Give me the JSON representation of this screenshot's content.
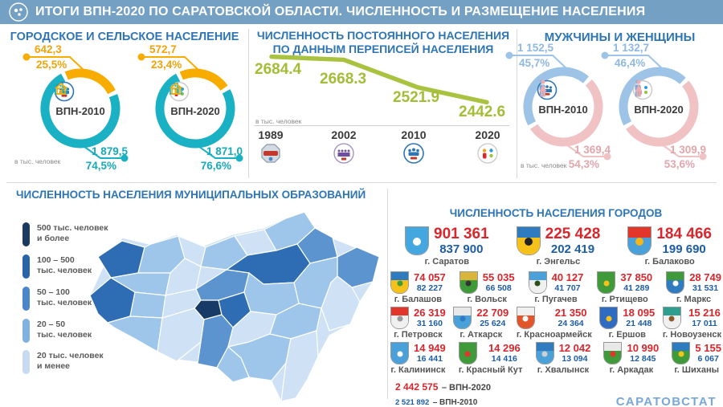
{
  "header": {
    "title": "ИТОГИ ВПН-2020 ПО САРАТОВСКОЙ ОБЛАСТИ. ЧИСЛЕННОСТЬ И РАЗМЕЩЕНИЕ НАСЕЛЕНИЯ",
    "logo": "census-round-emblem"
  },
  "colors": {
    "header_bg": "#74a0c4",
    "panel_title": "#2e75b6",
    "urban_teal": "#1ab1c5",
    "rural_yellow": "#f8ac00",
    "men_blue": "#9dc3e6",
    "women_pink": "#f0c2c4",
    "line_green": "#a9c23f",
    "vpn2020_red": "#d9262c",
    "vpn2010_blue": "#1d5ca8"
  },
  "panels": {
    "urban_rural": {
      "title": "ГОРОДСКОЕ И СЕЛЬСКОЕ НАСЕЛЕНИЕ",
      "unit": "в тыс. человек",
      "charts": [
        {
          "label": "ВПН-2010",
          "rural": {
            "value": "642,3",
            "pct": "25,5%"
          },
          "urban": {
            "value": "1 879,5",
            "pct": "74,5%"
          }
        },
        {
          "label": "ВПН-2020",
          "rural": {
            "value": "572,7",
            "pct": "23,4%"
          },
          "urban": {
            "value": "1 871,0",
            "pct": "76,6%"
          }
        }
      ]
    },
    "census_population": {
      "title_line1": "ЧИСЛЕННОСТЬ ПОСТОЯННОГО НАСЕЛЕНИЯ",
      "title_line2": "ПО ДАННЫМ ПЕРЕПИСЕЙ НАСЕЛЕНИЯ",
      "unit": "в тыс. человек"
    },
    "men_women": {
      "title": "МУЖЧИНЫ И ЖЕНЩИНЫ",
      "unit": "в тыс. человек",
      "charts": [
        {
          "label": "ВПН-2010",
          "men": {
            "value": "1 152,5",
            "pct": "45,7%"
          },
          "women": {
            "value": "1 369,4",
            "pct": "54,3%"
          }
        },
        {
          "label": "ВПН-2020",
          "men": {
            "value": "1 132,7",
            "pct": "46,4%"
          },
          "women": {
            "value": "1 309,9",
            "pct": "53,6%"
          }
        }
      ]
    },
    "municipalities": {
      "title": "ЧИСЛЕННОСТЬ НАСЕЛЕНИЯ МУНИЦИПАЛЬНЫХ ОБРАЗОВАНИЙ",
      "legend": [
        {
          "line1": "500 тыс. человек",
          "line2": "и более",
          "color": "#1b3a5f"
        },
        {
          "line1": "100 – 500",
          "line2": "тыс. человек",
          "color": "#2a64a8"
        },
        {
          "line1": "50 – 100",
          "line2": "тыс. человек",
          "color": "#4a86c8"
        },
        {
          "line1": "20 – 50",
          "line2": "тыс. человек",
          "color": "#7fb2e0"
        },
        {
          "line1": "20 тыс. человек",
          "line2": "и менее",
          "color": "#c6dbf2"
        }
      ]
    },
    "cities": {
      "title": "ЧИСЛЕННОСТЬ НАСЕЛЕНИЯ ГОРОДОВ",
      "major": [
        {
          "name": "г. Саратов",
          "vpn2020": "901 361",
          "vpn2010": "837 900",
          "arms": [
            "#45a7e0",
            "#45a7e0",
            "#ffffff"
          ]
        },
        {
          "name": "г. Энгельс",
          "vpn2020": "225 428",
          "vpn2010": "202 419",
          "arms": [
            "#2f7bc0",
            "#f6c21a",
            "#222222"
          ]
        },
        {
          "name": "г. Балаково",
          "vpn2020": "184 466",
          "vpn2010": "199 690",
          "arms": [
            "#e2362a",
            "#4aa0d8",
            "#f6b31a"
          ]
        }
      ],
      "minor": [
        {
          "name": "г. Балашов",
          "vpn2020": "74 057",
          "vpn2010": "82 227",
          "arms": [
            "#2f7bc0",
            "#f6c21a",
            "#3f9b3a"
          ]
        },
        {
          "name": "г. Вольск",
          "vpn2020": "55 035",
          "vpn2010": "66 508",
          "arms": [
            "#d9b53a",
            "#3f9b3a",
            "#333333"
          ]
        },
        {
          "name": "г. Пугачев",
          "vpn2020": "40 127",
          "vpn2010": "41 707",
          "arms": [
            "#4aa0d8",
            "#f0f0f0",
            "#2d5016"
          ]
        },
        {
          "name": "г. Ртищево",
          "vpn2020": "37 850",
          "vpn2010": "41 289",
          "arms": [
            "#3f9b3a",
            "#3f9b3a",
            "#f6c21a"
          ]
        },
        {
          "name": "г. Маркс",
          "vpn2020": "28 749",
          "vpn2010": "31 531",
          "arms": [
            "#3f9b3a",
            "#2f7bc0",
            "#ffffff"
          ]
        },
        {
          "name": "г. Петровск",
          "vpn2020": "26 319",
          "vpn2010": "31 160",
          "arms": [
            "#e2362a",
            "#f0f0f0",
            "#999999"
          ]
        },
        {
          "name": "г. Аткарск",
          "vpn2020": "22 709",
          "vpn2010": "25 624",
          "arms": [
            "#e8e8e8",
            "#4aa0d8",
            "#2f7bc0"
          ]
        },
        {
          "name": "г. Красноармейск",
          "vpn2020": "21 350",
          "vpn2010": "24 364",
          "arms": [
            "#f0f0f0",
            "#e2552a",
            "#ffffff"
          ]
        },
        {
          "name": "г. Ершов",
          "vpn2020": "18 095",
          "vpn2010": "21 448",
          "arms": [
            "#2f6bc0",
            "#2f6bc0",
            "#f6c21a"
          ]
        },
        {
          "name": "г. Новоузенск",
          "vpn2020": "15 216",
          "vpn2010": "17 011",
          "arms": [
            "#2e9e8f",
            "#f0f0f0",
            "#8a5a2b"
          ]
        },
        {
          "name": "г. Калининск",
          "vpn2020": "14 949",
          "vpn2010": "16 441",
          "arms": [
            "#4aa0d8",
            "#4aa0d8",
            "#ffffff"
          ]
        },
        {
          "name": "г. Красный Кут",
          "vpn2020": "14 296",
          "vpn2010": "14 416",
          "arms": [
            "#3f9b3a",
            "#3f9b3a",
            "#e2362a"
          ]
        },
        {
          "name": "г. Хвалынск",
          "vpn2020": "12 042",
          "vpn2010": "13 094",
          "arms": [
            "#2f7bc0",
            "#4aa0d8",
            "#cfcfcf"
          ]
        },
        {
          "name": "г. Аркадак",
          "vpn2020": "10 990",
          "vpn2010": "12 845",
          "arms": [
            "#e8e8e8",
            "#3f9b3a",
            "#e2362a"
          ]
        },
        {
          "name": "г. Шиханы",
          "vpn2020": "5 155",
          "vpn2010": "6 067",
          "arms": [
            "#2f7bc0",
            "#3f9b3a",
            "#f6c21a"
          ]
        }
      ],
      "footnote": {
        "total2020": "2 442 575",
        "label2020": "– ВПН-2020",
        "total2010": "2 521 892",
        "label2010": "– ВПН-2010"
      },
      "source": "САРАТОВСТАТ"
    }
  },
  "chart_data": [
    {
      "id": "urban_rural_2010",
      "type": "donut",
      "title": "ВПН-2010",
      "start_deg": 245,
      "unit": "тыс. человек",
      "segments": [
        {
          "label": "сельское население",
          "value": 642.3,
          "pct": 25.5,
          "color": "#f8ac00"
        },
        {
          "label": "городское население",
          "value": 1879.5,
          "pct": 74.5,
          "color": "#1ab1c5"
        }
      ]
    },
    {
      "id": "urban_rural_2020",
      "type": "donut",
      "title": "ВПН-2020",
      "start_deg": 245,
      "unit": "тыс. человек",
      "segments": [
        {
          "label": "сельское население",
          "value": 572.7,
          "pct": 23.4,
          "color": "#f8ac00"
        },
        {
          "label": "городское население",
          "value": 1871.0,
          "pct": 76.6,
          "color": "#1ab1c5"
        }
      ]
    },
    {
      "id": "men_women_2010",
      "type": "donut",
      "title": "ВПН-2010",
      "start_deg": 150,
      "unit": "тыс. человек",
      "segments": [
        {
          "label": "мужчины",
          "value": 1152.5,
          "pct": 45.7,
          "color": "#9dc3e6"
        },
        {
          "label": "женщины",
          "value": 1369.4,
          "pct": 54.3,
          "color": "#f0c2c4"
        }
      ]
    },
    {
      "id": "men_women_2020",
      "type": "donut",
      "title": "ВПН-2020",
      "start_deg": 150,
      "unit": "тыс. человек",
      "segments": [
        {
          "label": "мужчины",
          "value": 1132.7,
          "pct": 46.4,
          "color": "#9dc3e6"
        },
        {
          "label": "женщины",
          "value": 1309.9,
          "pct": 53.6,
          "color": "#f0c2c4"
        }
      ]
    },
    {
      "id": "census_line",
      "type": "line",
      "title": "ЧИСЛЕННОСТЬ ПОСТОЯННОГО НАСЕЛЕНИЯ ПО ДАННЫМ ПЕРЕПИСЕЙ НАСЕЛЕНИЯ",
      "x": [
        "1989",
        "2002",
        "2010",
        "2020"
      ],
      "y": [
        2684.4,
        2668.3,
        2521.9,
        2442.6
      ],
      "ylabel": "в тыс. человек",
      "color": "#a9c23f",
      "grid": false,
      "ylim": [
        2440,
        2700
      ]
    },
    {
      "id": "municipal_map",
      "type": "heatmap",
      "title": "ЧИСЛЕННОСТЬ НАСЕЛЕНИЯ МУНИЦИПАЛЬНЫХ ОБРАЗОВАНИЙ",
      "classes": [
        "500 тыс. человек и более",
        "100 – 500 тыс. человек",
        "50 – 100 тыс. человек",
        "20 – 50 тыс. человек",
        "20 тыс. человек и менее"
      ],
      "class_colors": [
        "#1b3a5f",
        "#2a64a8",
        "#4a86c8",
        "#7fb2e0",
        "#c6dbf2"
      ]
    }
  ]
}
